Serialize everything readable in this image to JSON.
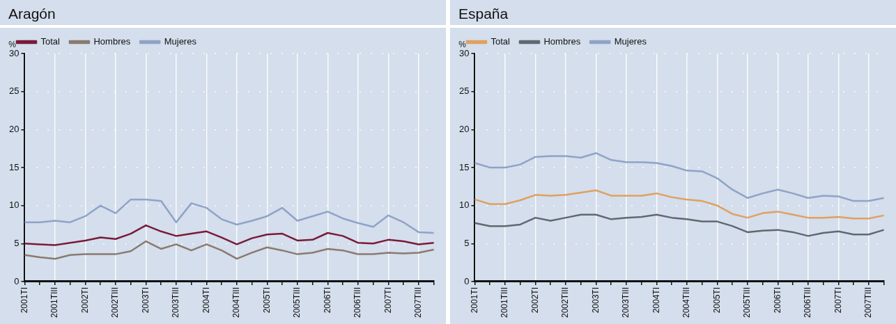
{
  "chart_data": [
    {
      "type": "line",
      "title": "Aragón",
      "ylabel": "%",
      "legend": "top left",
      "grid": true,
      "marker": "none",
      "line_style": "solid",
      "categories": [
        "2001TI",
        null,
        "2001TIII",
        null,
        "2002TI",
        null,
        "2002TIII",
        null,
        "2003TI",
        null,
        "2003TIII",
        null,
        "2004TI",
        null,
        "2004TIII",
        null,
        "2005TI",
        null,
        "2005TIII",
        null,
        "2006TI",
        null,
        "2006TIII",
        null,
        "2007TI",
        null,
        "2007TIII",
        null
      ],
      "ylim": [
        0,
        30
      ],
      "yticks": [
        0,
        5,
        10,
        15,
        20,
        25,
        30
      ],
      "series": [
        {
          "name": "Total",
          "color": "#7a1a3a",
          "values": [
            5.0,
            4.9,
            4.8,
            5.1,
            5.4,
            5.8,
            5.6,
            6.3,
            7.4,
            6.6,
            6.0,
            6.3,
            6.6,
            5.8,
            4.9,
            5.7,
            6.2,
            6.3,
            5.4,
            5.5,
            6.4,
            6.0,
            5.1,
            5.0,
            5.5,
            5.3,
            4.9,
            5.1
          ]
        },
        {
          "name": "Hombres",
          "color": "#8a7a70",
          "values": [
            3.5,
            3.2,
            3.0,
            3.5,
            3.6,
            3.6,
            3.6,
            4.0,
            5.3,
            4.3,
            4.9,
            4.1,
            4.9,
            4.1,
            3.0,
            3.8,
            4.5,
            4.1,
            3.6,
            3.8,
            4.3,
            4.1,
            3.6,
            3.6,
            3.8,
            3.7,
            3.8,
            4.2
          ]
        },
        {
          "name": "Mujeres",
          "color": "#8fa3c8",
          "values": [
            7.8,
            7.8,
            8.0,
            7.8,
            8.6,
            10.0,
            9.0,
            10.8,
            10.8,
            10.6,
            7.8,
            10.3,
            9.7,
            8.2,
            7.5,
            8.0,
            8.6,
            9.7,
            8.0,
            8.6,
            9.2,
            8.3,
            7.7,
            7.2,
            8.7,
            7.8,
            6.5,
            6.4
          ]
        }
      ]
    },
    {
      "type": "line",
      "title": "España",
      "ylabel": "%",
      "legend": "top left",
      "grid": true,
      "marker": "none",
      "line_style": "solid",
      "categories": [
        "2001TI",
        null,
        "2001TIII",
        null,
        "2002TI",
        null,
        "2002TIII",
        null,
        "2003TI",
        null,
        "2003TIII",
        null,
        "2004TI",
        null,
        "2004TIII",
        null,
        "2005TI",
        null,
        "2005TIII",
        null,
        "2006TI",
        null,
        "2006TIII",
        null,
        "2007TI",
        null,
        "2007TIII",
        null
      ],
      "ylim": [
        0,
        30
      ],
      "yticks": [
        0,
        5,
        10,
        15,
        20,
        25,
        30
      ],
      "series": [
        {
          "name": "Total",
          "color": "#e0a060",
          "values": [
            10.8,
            10.2,
            10.2,
            10.7,
            11.4,
            11.3,
            11.4,
            11.7,
            12.0,
            11.3,
            11.3,
            11.3,
            11.6,
            11.1,
            10.8,
            10.6,
            10.0,
            8.9,
            8.4,
            9.0,
            9.2,
            8.8,
            8.4,
            8.4,
            8.5,
            8.3,
            8.3,
            8.7
          ]
        },
        {
          "name": "Hombres",
          "color": "#606870",
          "values": [
            7.7,
            7.3,
            7.3,
            7.5,
            8.4,
            8.0,
            8.4,
            8.8,
            8.8,
            8.2,
            8.4,
            8.5,
            8.8,
            8.4,
            8.2,
            7.9,
            7.9,
            7.3,
            6.5,
            6.7,
            6.8,
            6.5,
            6.0,
            6.4,
            6.6,
            6.2,
            6.2,
            6.8
          ]
        },
        {
          "name": "Mujeres",
          "color": "#8fa3c8",
          "values": [
            15.6,
            15.0,
            15.0,
            15.4,
            16.4,
            16.5,
            16.5,
            16.3,
            16.9,
            16.0,
            15.7,
            15.7,
            15.6,
            15.2,
            14.6,
            14.5,
            13.6,
            12.1,
            11.0,
            11.6,
            12.1,
            11.6,
            11.0,
            11.3,
            11.2,
            10.6,
            10.6,
            11.0
          ]
        }
      ]
    }
  ]
}
